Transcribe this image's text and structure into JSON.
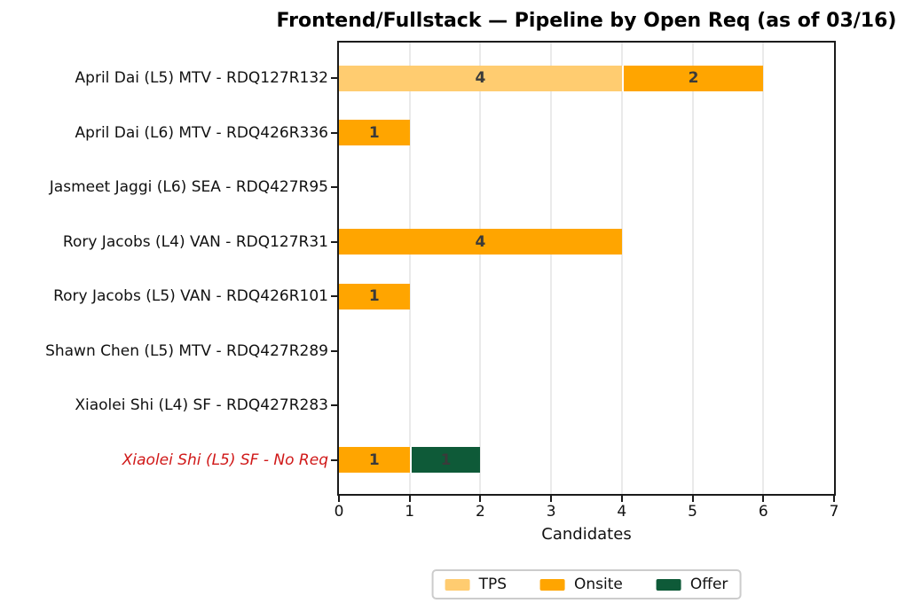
{
  "colors": {
    "spine": "#1b1b1b",
    "grid": "#eaeaea",
    "bar_value_label": "#3a3a3a",
    "highlight_label": "#d01818",
    "default_label": "#111111"
  },
  "chart_data": {
    "type": "bar",
    "orientation": "horizontal",
    "stacked": true,
    "title": "Frontend/Fullstack — Pipeline by Open Req (as of 03/16)",
    "xlabel": "Candidates",
    "ylabel": "",
    "xlim": [
      0,
      7
    ],
    "x_ticks": [
      "0",
      "1",
      "2",
      "3",
      "4",
      "5",
      "6",
      "7"
    ],
    "grid": "vertical",
    "legend_position": "bottom-center",
    "categories": [
      "April Dai (L5) MTV - RDQ127R132",
      "April Dai (L6) MTV - RDQ426R336",
      "Jasmeet Jaggi (L6) SEA - RDQ427R95",
      "Rory Jacobs (L4) VAN - RDQ127R31",
      "Rory Jacobs (L5) VAN - RDQ426R101",
      "Shawn Chen (L5) MTV - RDQ427R289",
      "Xiaolei Shi (L4) SF - RDQ427R283",
      "Xiaolei Shi (L5) SF - No Req"
    ],
    "highlight_index": 7,
    "series": [
      {
        "name": "TPS",
        "color": "#ffcc70",
        "values": [
          4,
          0,
          0,
          0,
          0,
          0,
          0,
          0
        ]
      },
      {
        "name": "Onsite",
        "color": "#ffa500",
        "values": [
          2,
          1,
          0,
          4,
          1,
          0,
          0,
          1
        ]
      },
      {
        "name": "Offer",
        "color": "#0e5a38",
        "values": [
          0,
          0,
          0,
          0,
          0,
          0,
          0,
          1
        ]
      }
    ]
  }
}
